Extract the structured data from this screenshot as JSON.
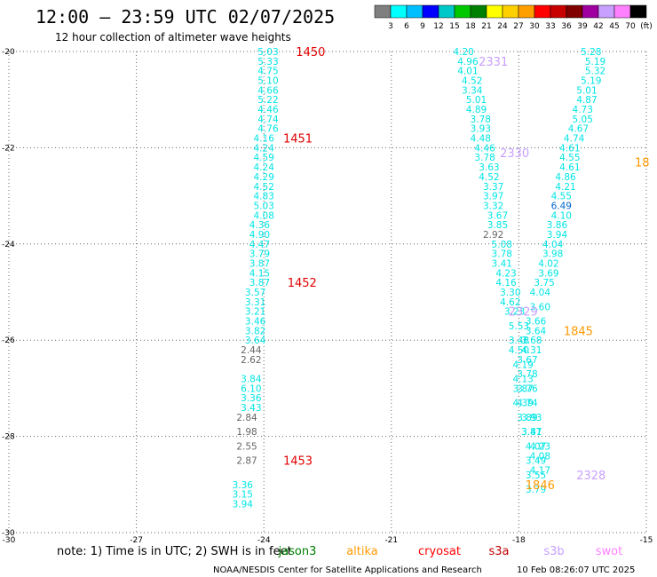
{
  "header": {
    "title": "12:00 – 23:59 UTC 02/07/2025",
    "subtitle": "12 hour collection of altimeter wave heights"
  },
  "colorbar": {
    "colors": [
      "#7f7f7f",
      "#00ffff",
      "#00bfff",
      "#0000ff",
      "#00c8c8",
      "#00c800",
      "#008000",
      "#ffff00",
      "#ffd000",
      "#ffa000",
      "#ff0000",
      "#c80000",
      "#800000",
      "#a000a0",
      "#c8a0ff",
      "#ff80ff",
      "#000000"
    ],
    "labels": [
      "3",
      "6",
      "9",
      "12",
      "15",
      "18",
      "21",
      "24",
      "27",
      "30",
      "33",
      "36",
      "39",
      "42",
      "45",
      "70",
      "(ft)"
    ]
  },
  "footer": {
    "note": "note:  1) Time is in UTC; 2) SWH is in feet",
    "credit": "NOAA/NESDIS Center for Satellite Applications and Research",
    "timestamp": "10 Feb 08:26:07 UTC 2025"
  },
  "legend": [
    {
      "name": "jason3",
      "color": "#008000"
    },
    {
      "name": "altika",
      "color": "#ff9900"
    },
    {
      "name": "cryosat",
      "color": "#ff0000"
    },
    {
      "name": "s3a",
      "color": "#c00000"
    },
    {
      "name": "s3b",
      "color": "#c8a0ff"
    },
    {
      "name": "swot",
      "color": "#ff80ff"
    }
  ],
  "chart_data": {
    "type": "scatter",
    "xlim": [
      -30,
      -15
    ],
    "ylim": [
      -30,
      -20
    ],
    "x_ticks": [
      "-30",
      "-27",
      "-24",
      "-21",
      "-18",
      "-15"
    ],
    "y_ticks": [
      "-20",
      "-22",
      "-24",
      "-26",
      "-28",
      "-30"
    ],
    "grid": true,
    "colors": {
      "cyan": "#00e5e5",
      "gray": "#666666",
      "blue": "#0066cc"
    },
    "tracks": [
      {
        "color": "cyan",
        "points": [
          [
            -23.9,
            -20.0,
            "5.03"
          ],
          [
            -23.9,
            -20.2,
            "5.33"
          ],
          [
            -23.9,
            -20.4,
            "4.75"
          ],
          [
            -23.9,
            -20.6,
            "5.10"
          ],
          [
            -23.9,
            -20.8,
            "4.66"
          ],
          [
            -23.9,
            -21.0,
            "5.22"
          ],
          [
            -23.9,
            -21.2,
            "4.46"
          ],
          [
            -23.9,
            -21.4,
            "4.74"
          ],
          [
            -23.9,
            -21.6,
            "4.76"
          ],
          [
            -24.0,
            -21.8,
            "4.16"
          ],
          [
            -24.0,
            -22.0,
            "4.24"
          ],
          [
            -24.0,
            -22.2,
            "4.59"
          ],
          [
            -24.0,
            -22.4,
            "4.24"
          ],
          [
            -24.0,
            -22.6,
            "4.29"
          ],
          [
            -24.0,
            -22.8,
            "4.52"
          ],
          [
            -24.0,
            -23.0,
            "4.83"
          ],
          [
            -24.0,
            -23.2,
            "5.03"
          ],
          [
            -24.0,
            -23.4,
            "4.08"
          ],
          [
            -24.1,
            -23.6,
            "4.36"
          ],
          [
            -24.1,
            -23.8,
            "4.90"
          ],
          [
            -24.1,
            -24.0,
            "4.47"
          ],
          [
            -24.1,
            -24.2,
            "3.79"
          ],
          [
            -24.1,
            -24.4,
            "3.87"
          ],
          [
            -24.1,
            -24.6,
            "4.15"
          ],
          [
            -24.1,
            -24.8,
            "3.87"
          ],
          [
            -24.2,
            -25.0,
            "3.57"
          ],
          [
            -24.2,
            -25.2,
            "3.31"
          ],
          [
            -24.2,
            -25.4,
            "3.21"
          ],
          [
            -24.2,
            -25.6,
            "3.46"
          ],
          [
            -24.2,
            -25.8,
            "3.82"
          ],
          [
            -24.2,
            -26.0,
            "3.64"
          ],
          [
            -24.3,
            -26.8,
            "3.84"
          ],
          [
            -24.3,
            -27.0,
            "6.10"
          ],
          [
            -24.3,
            -27.2,
            "3.36"
          ],
          [
            -24.3,
            -27.4,
            "3.43"
          ],
          [
            -24.5,
            -29.0,
            "3.36"
          ],
          [
            -24.5,
            -29.2,
            "3.15"
          ],
          [
            -24.5,
            -29.4,
            "3.94"
          ]
        ]
      },
      {
        "color": "gray",
        "points": [
          [
            -24.3,
            -26.2,
            "2.44"
          ],
          [
            -24.3,
            -26.4,
            "2.62"
          ],
          [
            -24.4,
            -27.6,
            "2.84"
          ],
          [
            -24.4,
            -27.9,
            "1.98"
          ],
          [
            -24.4,
            -28.2,
            "2.55"
          ],
          [
            -24.4,
            -28.5,
            "2.87"
          ]
        ]
      },
      {
        "color": "cyan",
        "points": [
          [
            -19.3,
            -20.0,
            "4.20"
          ],
          [
            -19.2,
            -20.2,
            "4.96"
          ],
          [
            -19.2,
            -20.4,
            "4.01"
          ],
          [
            -19.1,
            -20.6,
            "4.52"
          ],
          [
            -19.1,
            -20.8,
            "3.34"
          ],
          [
            -19.0,
            -21.0,
            "5.01"
          ],
          [
            -19.0,
            -21.2,
            "4.89"
          ],
          [
            -18.9,
            -21.4,
            "3.78"
          ],
          [
            -18.9,
            -21.6,
            "3.93"
          ],
          [
            -18.9,
            -21.8,
            "4.48"
          ],
          [
            -18.8,
            -22.0,
            "4.46"
          ],
          [
            -18.8,
            -22.2,
            "3.78"
          ],
          [
            -18.7,
            -22.4,
            "3.63"
          ],
          [
            -18.7,
            -22.6,
            "4.52"
          ],
          [
            -18.6,
            -22.8,
            "3.37"
          ],
          [
            -18.6,
            -23.0,
            "3.97"
          ],
          [
            -18.6,
            -23.2,
            "3.32"
          ],
          [
            -18.5,
            -23.4,
            "3.67"
          ],
          [
            -18.5,
            -23.6,
            "3.85"
          ],
          [
            -18.4,
            -24.0,
            "5.08"
          ],
          [
            -18.4,
            -24.2,
            "3.78"
          ],
          [
            -18.4,
            -24.4,
            "3.41"
          ],
          [
            -18.3,
            -24.6,
            "4.23"
          ],
          [
            -18.3,
            -24.8,
            "4.16"
          ],
          [
            -18.2,
            -25.0,
            "3.30"
          ],
          [
            -18.2,
            -25.2,
            "4.62"
          ],
          [
            -18.1,
            -25.4,
            "3.23"
          ],
          [
            -18.0,
            -25.7,
            "5.53"
          ],
          [
            -18.0,
            -26.0,
            "3.48"
          ],
          [
            -18.0,
            -26.2,
            "4.50"
          ],
          [
            -17.9,
            -26.5,
            "4.19"
          ],
          [
            -17.9,
            -26.8,
            "4.13"
          ],
          [
            -17.8,
            -27.0,
            "3.76"
          ],
          [
            -17.8,
            -27.3,
            "4.74"
          ],
          [
            -17.8,
            -27.6,
            "3.89"
          ],
          [
            -17.7,
            -27.9,
            "3.81"
          ],
          [
            -17.6,
            -28.2,
            "4.07"
          ],
          [
            -17.6,
            -28.5,
            "3.49"
          ],
          [
            -17.6,
            -28.8,
            "3.55"
          ],
          [
            -17.6,
            -29.1,
            "3.79"
          ],
          [
            -16.3,
            -20.0,
            "5.28"
          ],
          [
            -16.2,
            -20.2,
            "5.19"
          ],
          [
            -16.2,
            -20.4,
            "5.32"
          ],
          [
            -16.3,
            -20.6,
            "5.19"
          ],
          [
            -16.4,
            -20.8,
            "5.01"
          ],
          [
            -16.4,
            -21.0,
            "4.87"
          ],
          [
            -16.5,
            -21.2,
            "4.73"
          ],
          [
            -16.5,
            -21.4,
            "5.05"
          ],
          [
            -16.6,
            -21.6,
            "4.67"
          ],
          [
            -16.7,
            -21.8,
            "4.74"
          ],
          [
            -16.8,
            -22.0,
            "4.61"
          ],
          [
            -16.8,
            -22.2,
            "4.55"
          ],
          [
            -16.8,
            -22.4,
            "4.61"
          ],
          [
            -16.9,
            -22.6,
            "4.86"
          ],
          [
            -16.9,
            -22.8,
            "4.21"
          ],
          [
            -17.0,
            -23.0,
            "4.55"
          ],
          [
            -17.0,
            -23.4,
            "4.10"
          ],
          [
            -17.1,
            -23.6,
            "3.86"
          ],
          [
            -17.1,
            -23.8,
            "3.94"
          ],
          [
            -17.2,
            -24.0,
            "4.04"
          ],
          [
            -17.2,
            -24.2,
            "3.98"
          ],
          [
            -17.3,
            -24.4,
            "4.02"
          ],
          [
            -17.3,
            -24.6,
            "3.69"
          ],
          [
            -17.4,
            -24.8,
            "3.75"
          ],
          [
            -17.5,
            -25.0,
            "4.04"
          ],
          [
            -17.5,
            -25.3,
            "3.60"
          ],
          [
            -17.6,
            -25.6,
            "3.66"
          ],
          [
            -17.6,
            -25.8,
            "3.64"
          ],
          [
            -17.7,
            -26.0,
            "3.68"
          ],
          [
            -17.7,
            -26.2,
            "4.31"
          ],
          [
            -17.8,
            -26.4,
            "3.67"
          ],
          [
            -17.8,
            -26.7,
            "3.78"
          ],
          [
            -17.9,
            -27.0,
            "3.87"
          ],
          [
            -17.9,
            -27.3,
            "4.39"
          ],
          [
            -17.7,
            -27.6,
            "3.93"
          ],
          [
            -17.7,
            -27.9,
            "3.47"
          ],
          [
            -17.5,
            -28.2,
            "4.23"
          ],
          [
            -17.5,
            -28.4,
            "4.08"
          ],
          [
            -17.5,
            -28.7,
            "4.17"
          ]
        ]
      },
      {
        "color": "gray",
        "points": [
          [
            -18.6,
            -23.8,
            "2.92"
          ]
        ]
      },
      {
        "color": "blue",
        "points": [
          [
            -17.0,
            -23.2,
            "6.49"
          ]
        ]
      }
    ],
    "track_labels": [
      [
        -22.9,
        -20.0,
        "1450",
        "#e00000"
      ],
      [
        -23.2,
        -21.8,
        "1451",
        "#e00000"
      ],
      [
        -23.1,
        -24.8,
        "1452",
        "#e00000"
      ],
      [
        -23.2,
        -28.5,
        "1453",
        "#e00000"
      ],
      [
        -18.6,
        -20.2,
        "2331",
        "#c8a0ff"
      ],
      [
        -18.1,
        -22.1,
        "2330",
        "#c8a0ff"
      ],
      [
        -17.9,
        -25.4,
        "2329",
        "#c8a0ff"
      ],
      [
        -16.3,
        -28.8,
        "2328",
        "#c8a0ff"
      ],
      [
        -15.1,
        -22.3,
        "18",
        "#ff9900"
      ],
      [
        -16.6,
        -25.8,
        "1845",
        "#ff9900"
      ],
      [
        -17.5,
        -29.0,
        "1846",
        "#ff9900"
      ]
    ]
  }
}
